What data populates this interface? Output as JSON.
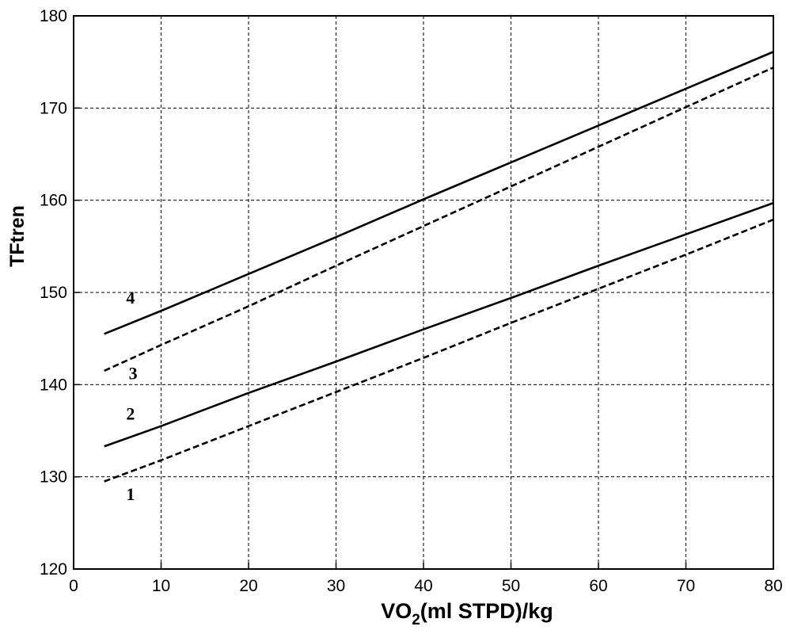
{
  "chart_data": {
    "type": "line",
    "ylabel": "TFtren",
    "xlabel_parts": {
      "pre": "VO",
      "sub": "2",
      "post": "(ml STPD)/kg"
    },
    "xlim": [
      0,
      80
    ],
    "ylim": [
      120,
      180
    ],
    "xticks": [
      0,
      10,
      20,
      30,
      40,
      50,
      60,
      70,
      80
    ],
    "yticks": [
      120,
      130,
      140,
      150,
      160,
      170,
      180
    ],
    "grid": true,
    "series": [
      {
        "name": "1",
        "style": "dashed",
        "x": [
          3.5,
          10,
          20,
          30,
          40,
          50,
          60,
          70,
          80
        ],
        "y": [
          129.5,
          131.8,
          135.5,
          139.2,
          142.9,
          146.7,
          150.4,
          154.1,
          157.9
        ]
      },
      {
        "name": "2",
        "style": "solid",
        "x": [
          3.5,
          10,
          20,
          30,
          40,
          50,
          60,
          70,
          80
        ],
        "y": [
          133.3,
          135.5,
          139.1,
          142.5,
          146.0,
          149.4,
          152.9,
          156.3,
          159.7
        ]
      },
      {
        "name": "3",
        "style": "dashed",
        "x": [
          3.5,
          10,
          20,
          30,
          40,
          50,
          60,
          70,
          80
        ],
        "y": [
          141.5,
          144.3,
          148.5,
          152.9,
          157.2,
          161.5,
          165.8,
          170.1,
          174.4
        ]
      },
      {
        "name": "4",
        "style": "solid",
        "x": [
          3.5,
          10,
          20,
          30,
          40,
          50,
          60,
          70,
          80
        ],
        "y": [
          145.5,
          148.0,
          152.0,
          156.0,
          160.1,
          164.1,
          168.1,
          172.1,
          176.1
        ]
      }
    ],
    "annotations": [
      {
        "text": "1",
        "x": 6.5,
        "y": 127.5
      },
      {
        "text": "2",
        "x": 6.5,
        "y": 136.2
      },
      {
        "text": "3",
        "x": 6.8,
        "y": 140.6
      },
      {
        "text": "4",
        "x": 6.5,
        "y": 148.8
      }
    ]
  }
}
